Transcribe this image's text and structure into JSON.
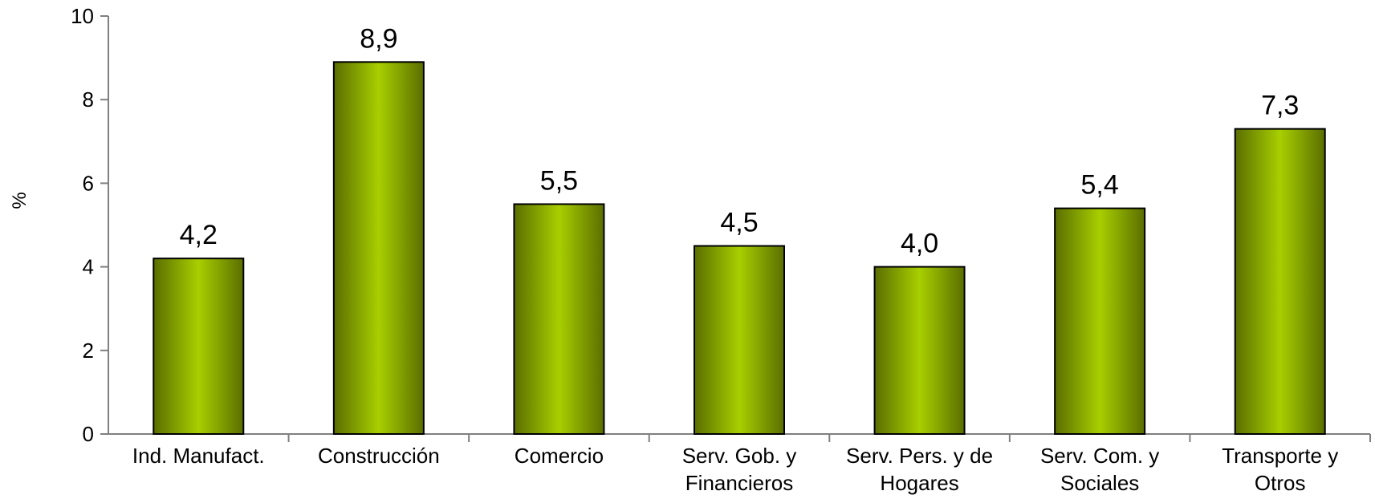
{
  "chart_data": {
    "type": "bar",
    "ylabel": "%",
    "ylim": [
      0,
      10
    ],
    "yticks": [
      0,
      2,
      4,
      6,
      8,
      10
    ],
    "grid": false,
    "categories": [
      [
        "Ind. Manufact."
      ],
      [
        "Construcción"
      ],
      [
        "Comercio"
      ],
      [
        "Serv. Gob. y",
        "Financieros"
      ],
      [
        "Serv. Pers. y de",
        "Hogares"
      ],
      [
        "Serv. Com. y",
        "Sociales"
      ],
      [
        "Transporte y",
        "Otros"
      ]
    ],
    "values": [
      4.2,
      8.9,
      5.5,
      4.5,
      4.0,
      5.4,
      7.3
    ],
    "value_labels": [
      "4,2",
      "8,9",
      "5,5",
      "4,5",
      "4,0",
      "5,4",
      "7,3"
    ],
    "bar_color": "#a8cf00",
    "bar_edge_color": "#5a6e00"
  }
}
